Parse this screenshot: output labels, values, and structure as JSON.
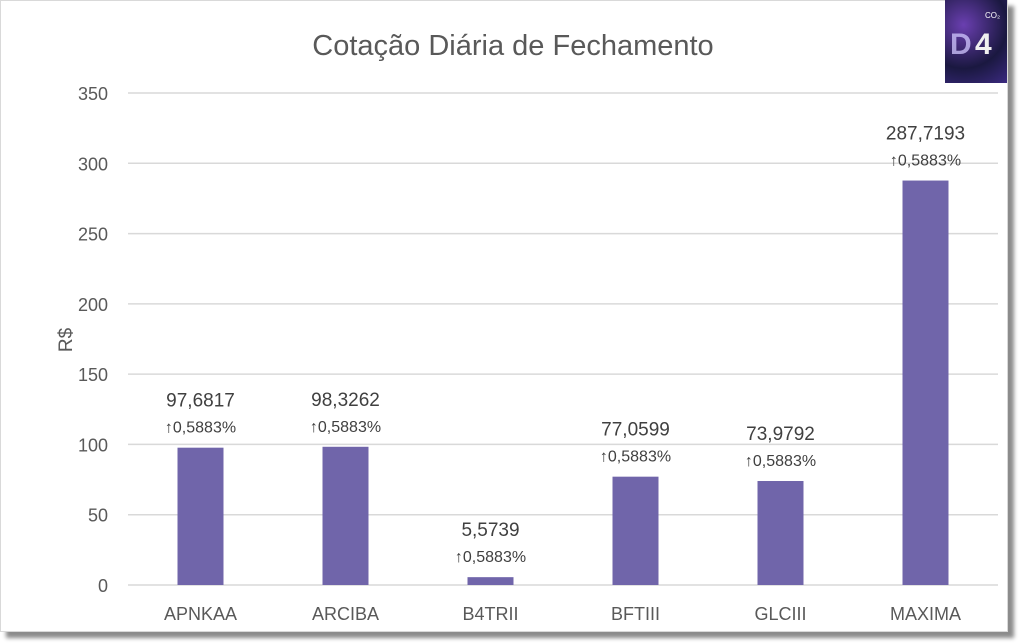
{
  "logo": {
    "text": "D4",
    "superscript": "CO2"
  },
  "chart_data": {
    "type": "bar",
    "title": "Cotação Diária de Fechamento",
    "xlabel": "",
    "ylabel": "R$",
    "ylim": [
      0,
      350
    ],
    "yticks": [
      "0",
      "50",
      "100",
      "150",
      "200",
      "250",
      "300",
      "350"
    ],
    "grid": true,
    "categories": [
      "APNKAA",
      "ARCIBA",
      "B4TRII",
      "BFTIII",
      "GLCIII",
      "MAXIMA"
    ],
    "values": [
      97.6817,
      98.3262,
      5.5739,
      77.0599,
      73.9792,
      287.7193
    ],
    "value_labels": [
      "97,6817",
      "98,3262",
      "5,5739",
      "77,0599",
      "73,9792",
      "287,7193"
    ],
    "change_labels": [
      "↑0,5883%",
      "↑0,5883%",
      "↑0,5883%",
      "↑0,5883%",
      "↑0,5883%",
      "↑0,5883%"
    ],
    "bar_color": "#7065aa"
  }
}
